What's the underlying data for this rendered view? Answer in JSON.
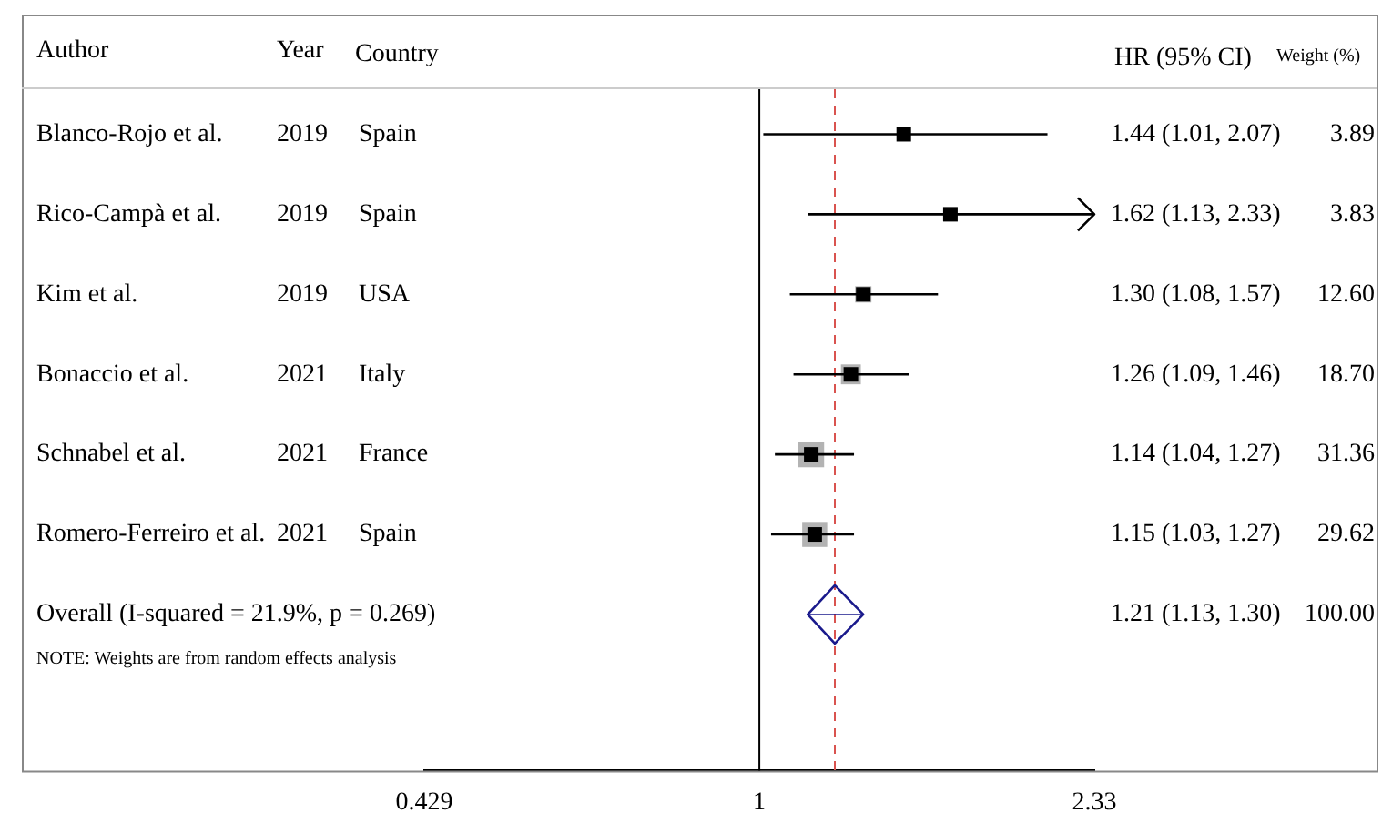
{
  "chart_data": {
    "type": "scatter",
    "orientation": "horizontal",
    "categories": [
      "Blanco-Rojo et al.",
      "Rico-Campà et al.",
      "Kim et al.",
      "Bonaccio et al.",
      "Schnabel et al.",
      "Romero-Ferreiro et al.",
      "Overall (I-squared = 21.9%, p = 0.269)"
    ],
    "series": [
      {
        "type": "bubble",
        "color": "#b3b3b3",
        "values": [
          1.44,
          1.62,
          1.3,
          1.26,
          1.14,
          1.15,
          null
        ],
        "sizes": [
          3.89,
          3.83,
          12.6,
          18.7,
          31.36,
          29.62,
          null
        ],
        "value_labels": [
          "3.89",
          "3.83",
          "12.60",
          "18.70",
          "31.36",
          "29.62",
          null
        ]
      },
      {
        "type": "scatter",
        "color": "#000000",
        "marker": "square",
        "values": [
          1.44,
          1.62,
          1.3,
          1.26,
          1.14,
          1.15,
          null
        ],
        "errors": [
          [
            1.01,
            2.07
          ],
          [
            1.13,
            2.33
          ],
          [
            1.08,
            1.57
          ],
          [
            1.09,
            1.46
          ],
          [
            1.04,
            1.27
          ],
          [
            1.03,
            1.27
          ],
          null
        ]
      },
      {
        "type": "scatter",
        "color": "#1a1a8c",
        "marker": "diamond",
        "values": [
          null,
          null,
          null,
          null,
          null,
          null,
          1.21
        ],
        "errors": [
          null,
          null,
          null,
          null,
          null,
          null,
          [
            1.13,
            1.3
          ]
        ]
      }
    ],
    "value_labels": [
      "1.44 (1.01, 2.07)",
      "1.62 (1.13, 2.33)",
      "1.30 (1.08, 1.57)",
      "1.26 (1.09, 1.46)",
      "1.14 (1.04, 1.27)",
      "1.15 (1.03, 1.27)",
      "1.21 (1.13, 1.30)"
    ],
    "annotations": [
      "Author",
      "Year",
      "Country",
      "HR (95% CI)",
      "Weight (%)",
      "NOTE: Weights are from random effects analysis",
      "2019",
      "Spain",
      "2019",
      "Spain",
      "2019",
      "USA",
      "2021",
      "Italy",
      "2021",
      "France",
      "2021",
      "Spain",
      "100.00"
    ],
    "xlim": [
      0.429,
      2.33
    ],
    "xticks": [
      0.429,
      1,
      2.33
    ],
    "log": "x",
    "grid": false,
    "legend": false,
    "ref_lines": [
      {
        "axis": "x",
        "value": 1,
        "color": "#000000",
        "line_style": "solid"
      },
      {
        "axis": "x",
        "value": 1.21,
        "color": "#d9534f",
        "line_style": "dashed"
      }
    ]
  }
}
